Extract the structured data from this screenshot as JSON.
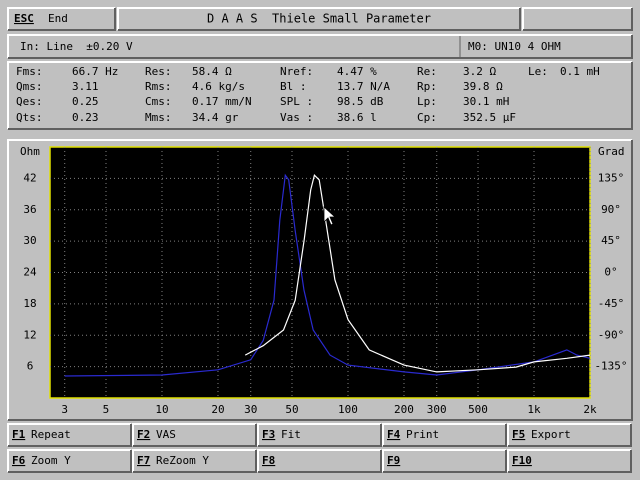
{
  "header": {
    "esc_key": "ESC",
    "esc_label": "End",
    "title": "D A A S  Thiele Small Parameter"
  },
  "status": {
    "input": "In: Line  ±0.20 V",
    "model": "M0: UN10 4 OHM"
  },
  "parameters": [
    [
      {
        "label": "Fms:",
        "value": "66.7 Hz"
      },
      {
        "label": "Res:",
        "value": "58.4 Ω"
      },
      {
        "label": "Nref:",
        "value": "4.47 %"
      },
      {
        "label": "Re:",
        "value": "3.2 Ω"
      },
      {
        "label": "Le:",
        "value": "0.1 mH"
      }
    ],
    [
      {
        "label": "Qms:",
        "value": "3.11"
      },
      {
        "label": "Rms:",
        "value": "4.6 kg/s"
      },
      {
        "label": "Bl :",
        "value": "13.7 N/A"
      },
      {
        "label": "Rp:",
        "value": "39.8 Ω"
      }
    ],
    [
      {
        "label": "Qes:",
        "value": "0.25"
      },
      {
        "label": "Cms:",
        "value": "0.17 mm/N"
      },
      {
        "label": "SPL :",
        "value": "98.5 dB"
      },
      {
        "label": "Lp:",
        "value": "30.1 mH"
      }
    ],
    [
      {
        "label": "Qts:",
        "value": "0.23"
      },
      {
        "label": "Mms:",
        "value": "34.4 gr"
      },
      {
        "label": "Vas :",
        "value": "38.6 l"
      },
      {
        "label": "Cp:",
        "value": "352.5 µF"
      }
    ]
  ],
  "chart_data": {
    "type": "line",
    "y_label": "Ohm",
    "y2_label": "Grad",
    "log_x": true,
    "grid": true,
    "xlim": [
      2.5,
      2000
    ],
    "xticks": [
      3,
      5,
      10,
      20,
      30,
      50,
      100,
      200,
      300,
      500,
      {
        "value": 1000,
        "label": "1k"
      },
      {
        "value": 2000,
        "label": "2k"
      }
    ],
    "ylim": [
      0,
      48
    ],
    "yticks": [
      6,
      12,
      18,
      24,
      30,
      36,
      42
    ],
    "y2lim": [
      -180,
      180
    ],
    "y2ticks": [
      {
        "value": 135,
        "label": "135°"
      },
      {
        "value": 90,
        "label": "90°"
      },
      {
        "value": 45,
        "label": "45°"
      },
      {
        "value": 0,
        "label": "0°"
      },
      {
        "value": -45,
        "label": "-45°"
      },
      {
        "value": -90,
        "label": "-90°"
      },
      {
        "value": -135,
        "label": "-135°"
      }
    ],
    "series": [
      {
        "color": "#2a2ad0",
        "x": [
          3,
          10,
          20,
          30,
          35,
          40,
          43,
          46,
          48,
          52,
          58,
          65,
          80,
          100,
          200,
          300,
          500,
          1000,
          1500,
          1700,
          2000
        ],
        "values": [
          4.2,
          4.4,
          5.4,
          7.3,
          11,
          18.7,
          34,
          42.6,
          41.7,
          32,
          20.6,
          13,
          8.2,
          6.3,
          5,
          4.4,
          5.4,
          6.9,
          9.2,
          8.2,
          7.6
        ]
      },
      {
        "color": "#ffffff",
        "x": [
          28,
          35,
          45,
          52,
          58,
          63,
          66,
          70,
          75,
          85,
          100,
          130,
          200,
          300,
          500,
          800,
          1000,
          1500,
          2000
        ],
        "values": [
          8.2,
          10,
          13,
          18.7,
          30,
          39.8,
          42.6,
          41.7,
          35,
          22.6,
          15,
          9.2,
          6.3,
          5,
          5.4,
          5.9,
          6.9,
          7.6,
          8.2
        ]
      }
    ]
  },
  "function_keys": [
    {
      "key": "F1",
      "label": "Repeat"
    },
    {
      "key": "F2",
      "label": "VAS"
    },
    {
      "key": "F3",
      "label": "Fit"
    },
    {
      "key": "F4",
      "label": "Print"
    },
    {
      "key": "F5",
      "label": "Export"
    },
    {
      "key": "F6",
      "label": "Zoom Y"
    },
    {
      "key": "F7",
      "label": "ReZoom Y"
    },
    {
      "key": "F8"
    },
    {
      "key": "F9"
    },
    {
      "key": "F10"
    }
  ]
}
